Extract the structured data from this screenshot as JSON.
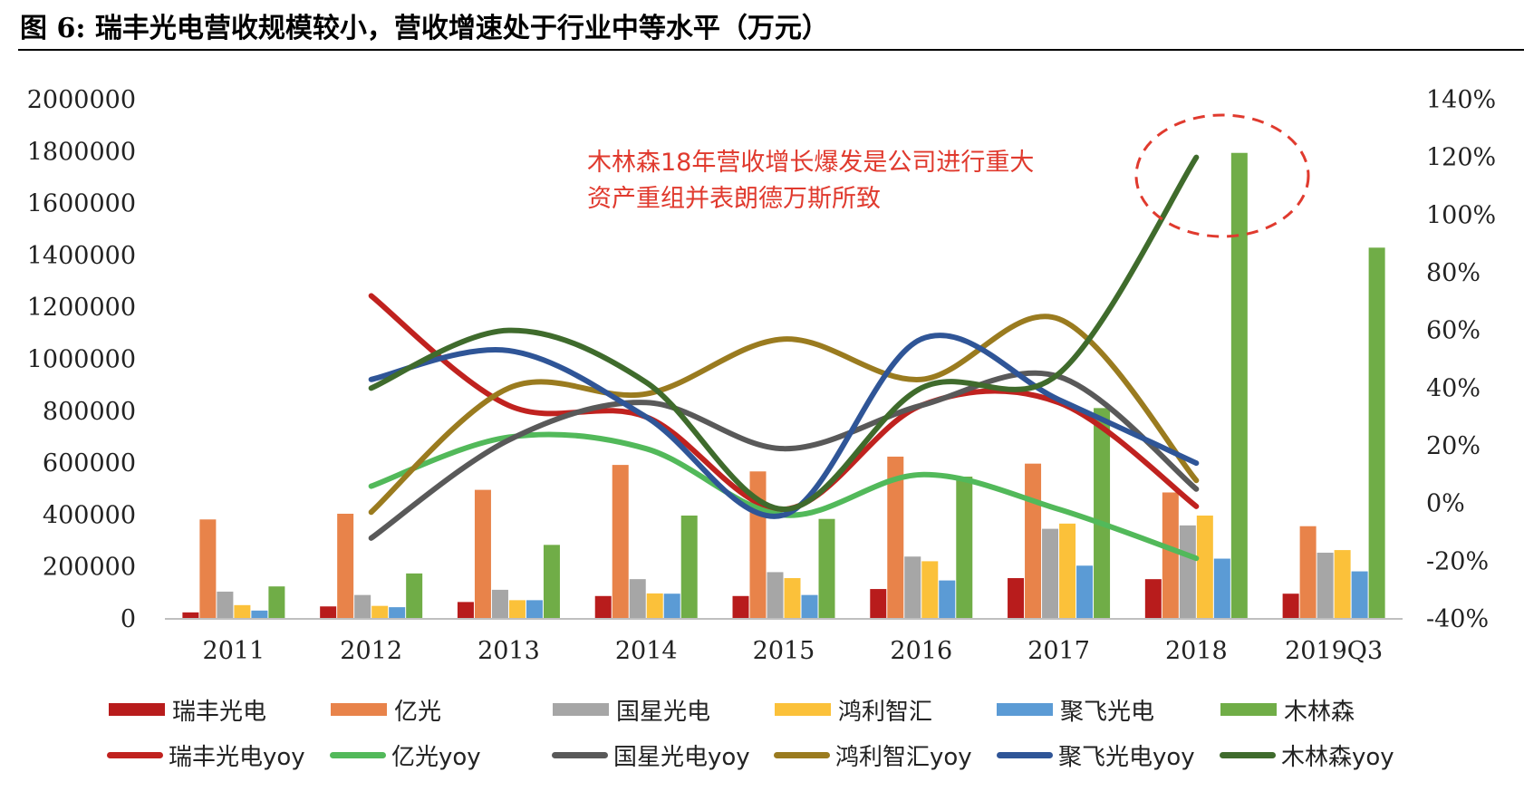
{
  "title": "图 6:  瑞丰光电营收规模较小，营收增速处于行业中等水平（万元）",
  "annotation_lines": [
    "木林森18年营收增长爆发是公司进行重大",
    "资产重组并表朗德万斯所致"
  ],
  "chart_data": {
    "type": "bar+line",
    "categories": [
      "2011",
      "2012",
      "2013",
      "2014",
      "2015",
      "2016",
      "2017",
      "2018",
      "2019Q3"
    ],
    "left_axis": {
      "min": 0,
      "max": 2000000,
      "ticks": [
        "0",
        "200000",
        "400000",
        "600000",
        "800000",
        "1000000",
        "1200000",
        "1400000",
        "1600000",
        "1800000",
        "2000000"
      ]
    },
    "right_axis": {
      "min": -40,
      "max": 140,
      "unit": "%",
      "ticks": [
        "-40%",
        "-20%",
        "0%",
        "20%",
        "40%",
        "60%",
        "80%",
        "100%",
        "120%",
        "140%"
      ]
    },
    "bar_series": [
      {
        "name": "瑞丰光电",
        "color": "#b81c1c",
        "values": [
          25000,
          48000,
          65000,
          88000,
          88000,
          115000,
          157000,
          153000,
          97000
        ]
      },
      {
        "name": "亿光",
        "color": "#e8834a",
        "values": [
          383000,
          405000,
          497000,
          593000,
          568000,
          625000,
          598000,
          487000,
          357000
        ]
      },
      {
        "name": "国星光电",
        "color": "#a6a6a6",
        "values": [
          105000,
          92000,
          112000,
          153000,
          180000,
          240000,
          347000,
          360000,
          255000
        ]
      },
      {
        "name": "鸿利智汇",
        "color": "#fbc13a",
        "values": [
          53000,
          50000,
          72000,
          98000,
          157000,
          222000,
          367000,
          398000,
          265000
        ]
      },
      {
        "name": "聚飞光电",
        "color": "#5b9bd5",
        "values": [
          32000,
          45000,
          72000,
          97000,
          92000,
          148000,
          205000,
          232000,
          183000
        ]
      },
      {
        "name": "木林森",
        "color": "#70ad47",
        "values": [
          125000,
          175000,
          285000,
          398000,
          385000,
          548000,
          812000,
          1795000,
          1430000
        ]
      }
    ],
    "line_series": [
      {
        "name": "瑞丰光电yoy",
        "color": "#c0221f",
        "values": [
          null,
          72,
          34,
          30,
          -2,
          34,
          35,
          -1,
          null
        ]
      },
      {
        "name": "亿光yoy",
        "color": "#52b95a",
        "values": [
          null,
          6,
          23,
          19,
          -4,
          10,
          -2,
          -19,
          null
        ]
      },
      {
        "name": "国星光电yoy",
        "color": "#595959",
        "values": [
          null,
          -12,
          22,
          35,
          19,
          34,
          44,
          5,
          null
        ]
      },
      {
        "name": "鸿利智汇yoy",
        "color": "#9a7b1f",
        "values": [
          null,
          -3,
          40,
          38,
          57,
          43,
          64,
          8,
          null
        ]
      },
      {
        "name": "聚飞光电yoy",
        "color": "#2f5597",
        "values": [
          null,
          43,
          53,
          30,
          -4,
          57,
          36,
          14,
          null
        ]
      },
      {
        "name": "木林森yoy",
        "color": "#3f6b2c",
        "values": [
          null,
          40,
          60,
          42,
          -2,
          40,
          45,
          120,
          null
        ]
      }
    ]
  }
}
